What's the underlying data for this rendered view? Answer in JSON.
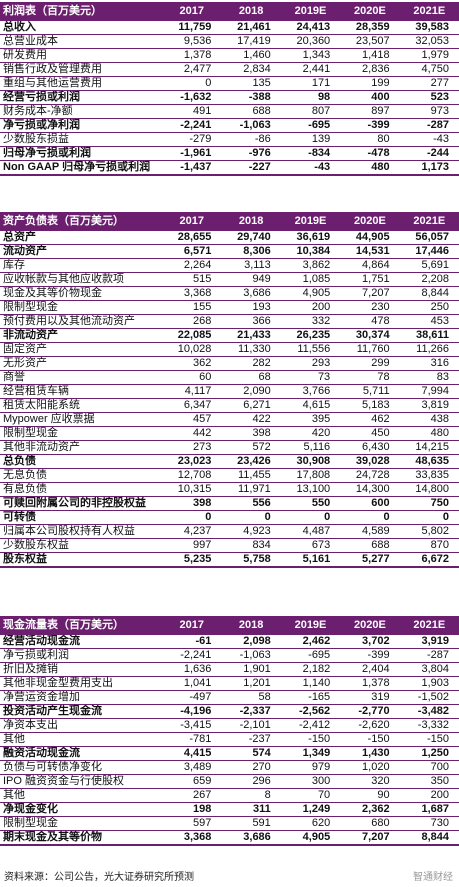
{
  "income": {
    "title": "利润表（百万美元）",
    "years": [
      "2017",
      "2018",
      "2019E",
      "2020E",
      "2021E"
    ],
    "rows": [
      {
        "label": "总收入",
        "values": [
          "11,759",
          "21,461",
          "24,413",
          "28,359",
          "39,583"
        ],
        "bold": true
      },
      {
        "label": "总营业成本",
        "values": [
          "9,536",
          "17,419",
          "20,360",
          "23,507",
          "32,053"
        ]
      },
      {
        "label": "研发费用",
        "values": [
          "1,378",
          "1,460",
          "1,343",
          "1,418",
          "1,979"
        ]
      },
      {
        "label": "销售行政及管理费用",
        "values": [
          "2,477",
          "2,834",
          "2,441",
          "2,836",
          "4,750"
        ]
      },
      {
        "label": "重组与其他运营费用",
        "values": [
          "0",
          "135",
          "171",
          "199",
          "277"
        ]
      },
      {
        "label": "经营亏损或利润",
        "values": [
          "-1,632",
          "-388",
          "98",
          "400",
          "523"
        ],
        "bold": true
      },
      {
        "label": "财务成本-净额",
        "values": [
          "491",
          "688",
          "807",
          "897",
          "973"
        ]
      },
      {
        "label": "净亏损或净利润",
        "values": [
          "-2,241",
          "-1,063",
          "-695",
          "-399",
          "-287"
        ],
        "bold": true
      },
      {
        "label": "少数股东损益",
        "values": [
          "-279",
          "-86",
          "139",
          "80",
          "-43"
        ]
      },
      {
        "label": "归母净亏损或利润",
        "values": [
          "-1,961",
          "-976",
          "-834",
          "-478",
          "-244"
        ],
        "bold": true
      },
      {
        "label": "Non GAAP 归母净亏损或利润",
        "values": [
          "-1,437",
          "-227",
          "-43",
          "480",
          "1,173"
        ],
        "bold": true
      }
    ]
  },
  "balance": {
    "title": "资产负债表（百万美元）",
    "years": [
      "2017",
      "2018",
      "2019E",
      "2020E",
      "2021E"
    ],
    "rows": [
      {
        "label": "总资产",
        "values": [
          "28,655",
          "29,740",
          "36,619",
          "44,905",
          "56,057"
        ],
        "bold": true
      },
      {
        "label": "流动资产",
        "values": [
          "6,571",
          "8,306",
          "10,384",
          "14,531",
          "17,446"
        ],
        "bold": true
      },
      {
        "label": "库存",
        "values": [
          "2,264",
          "3,113",
          "3,862",
          "4,864",
          "5,691"
        ]
      },
      {
        "label": "应收帐款与其他应收款项",
        "values": [
          "515",
          "949",
          "1,085",
          "1,751",
          "2,208"
        ]
      },
      {
        "label": "现金及其等价物现金",
        "values": [
          "3,368",
          "3,686",
          "4,905",
          "7,207",
          "8,844"
        ]
      },
      {
        "label": "限制型现金",
        "values": [
          "155",
          "193",
          "200",
          "230",
          "250"
        ]
      },
      {
        "label": "预付费用以及其他流动资产",
        "values": [
          "268",
          "366",
          "332",
          "478",
          "453"
        ]
      },
      {
        "label": "非流动资产",
        "values": [
          "22,085",
          "21,433",
          "26,235",
          "30,374",
          "38,611"
        ],
        "bold": true
      },
      {
        "label": "固定资产",
        "values": [
          "10,028",
          "11,330",
          "11,556",
          "11,760",
          "11,266"
        ]
      },
      {
        "label": "无形资产",
        "values": [
          "362",
          "282",
          "293",
          "299",
          "316"
        ]
      },
      {
        "label": "商誉",
        "values": [
          "60",
          "68",
          "73",
          "78",
          "83"
        ]
      },
      {
        "label": "经营租赁车辆",
        "values": [
          "4,117",
          "2,090",
          "3,766",
          "5,711",
          "7,994"
        ]
      },
      {
        "label": "租赁太阳能系统",
        "values": [
          "6,347",
          "6,271",
          "4,615",
          "5,183",
          "3,819"
        ]
      },
      {
        "label": "Mypower 应收票据",
        "values": [
          "457",
          "422",
          "395",
          "462",
          "438"
        ]
      },
      {
        "label": "限制型现金",
        "values": [
          "442",
          "398",
          "420",
          "450",
          "480"
        ]
      },
      {
        "label": "其他非流动资产",
        "values": [
          "273",
          "572",
          "5,116",
          "6,430",
          "14,215"
        ]
      },
      {
        "label": "总负债",
        "values": [
          "23,023",
          "23,426",
          "30,908",
          "39,028",
          "48,635"
        ],
        "bold": true
      },
      {
        "label": "无息负债",
        "values": [
          "12,708",
          "11,455",
          "17,808",
          "24,728",
          "33,835"
        ]
      },
      {
        "label": "有息负债",
        "values": [
          "10,315",
          "11,971",
          "13,100",
          "14,300",
          "14,800"
        ]
      },
      {
        "label": "可赎回附属公司的非控股权益",
        "values": [
          "398",
          "556",
          "550",
          "600",
          "750"
        ],
        "bold": true
      },
      {
        "label": "可转债",
        "values": [
          "0",
          "0",
          "0",
          "0",
          "0"
        ],
        "bold": true
      },
      {
        "label": "归属本公司股权持有人权益",
        "values": [
          "4,237",
          "4,923",
          "4,487",
          "4,589",
          "5,802"
        ]
      },
      {
        "label": "少数股东权益",
        "values": [
          "997",
          "834",
          "673",
          "688",
          "870"
        ]
      },
      {
        "label": "股东权益",
        "values": [
          "5,235",
          "5,758",
          "5,161",
          "5,277",
          "6,672"
        ],
        "bold": true
      }
    ]
  },
  "cashflow": {
    "title": "现金流量表（百万美元）",
    "years": [
      "2017",
      "2018",
      "2019E",
      "2020E",
      "2021E"
    ],
    "rows": [
      {
        "label": "经营活动现金流",
        "values": [
          "-61",
          "2,098",
          "2,462",
          "3,702",
          "3,919"
        ],
        "bold": true
      },
      {
        "label": "净亏损或利润",
        "values": [
          "-2,241",
          "-1,063",
          "-695",
          "-399",
          "-287"
        ]
      },
      {
        "label": "折旧及摊销",
        "values": [
          "1,636",
          "1,901",
          "2,182",
          "2,404",
          "3,804"
        ]
      },
      {
        "label": "其他非现金型费用支出",
        "values": [
          "1,041",
          "1,201",
          "1,140",
          "1,378",
          "1,903"
        ]
      },
      {
        "label": "净营运资金增加",
        "values": [
          "-497",
          "58",
          "-165",
          "319",
          "-1,502"
        ]
      },
      {
        "label": "投资活动产生现金流",
        "values": [
          "-4,196",
          "-2,337",
          "-2,562",
          "-2,770",
          "-3,482"
        ],
        "bold": true
      },
      {
        "label": "净资本支出",
        "values": [
          "-3,415",
          "-2,101",
          "-2,412",
          "-2,620",
          "-3,332"
        ]
      },
      {
        "label": "其他",
        "values": [
          "-781",
          "-237",
          "-150",
          "-150",
          "-150"
        ]
      },
      {
        "label": "融资活动现金流",
        "values": [
          "4,415",
          "574",
          "1,349",
          "1,430",
          "1,250"
        ],
        "bold": true
      },
      {
        "label": "负债与可转债净变化",
        "values": [
          "3,489",
          "270",
          "979",
          "1,020",
          "700"
        ]
      },
      {
        "label": "IPO 融资资金与行使股权",
        "values": [
          "659",
          "296",
          "300",
          "320",
          "350"
        ]
      },
      {
        "label": "其他",
        "values": [
          "267",
          "8",
          "70",
          "90",
          "200"
        ]
      },
      {
        "label": "净现金变化",
        "values": [
          "198",
          "311",
          "1,249",
          "2,362",
          "1,687"
        ],
        "bold": true
      },
      {
        "label": "限制型现金",
        "values": [
          "597",
          "591",
          "620",
          "680",
          "730"
        ]
      },
      {
        "label": "期末现金及其等价物",
        "values": [
          "3,368",
          "3,686",
          "4,905",
          "7,207",
          "8,844"
        ],
        "bold": true
      }
    ]
  },
  "source": "资料来源：公司公告，光大证券研究所预测",
  "watermark": "智通财经"
}
